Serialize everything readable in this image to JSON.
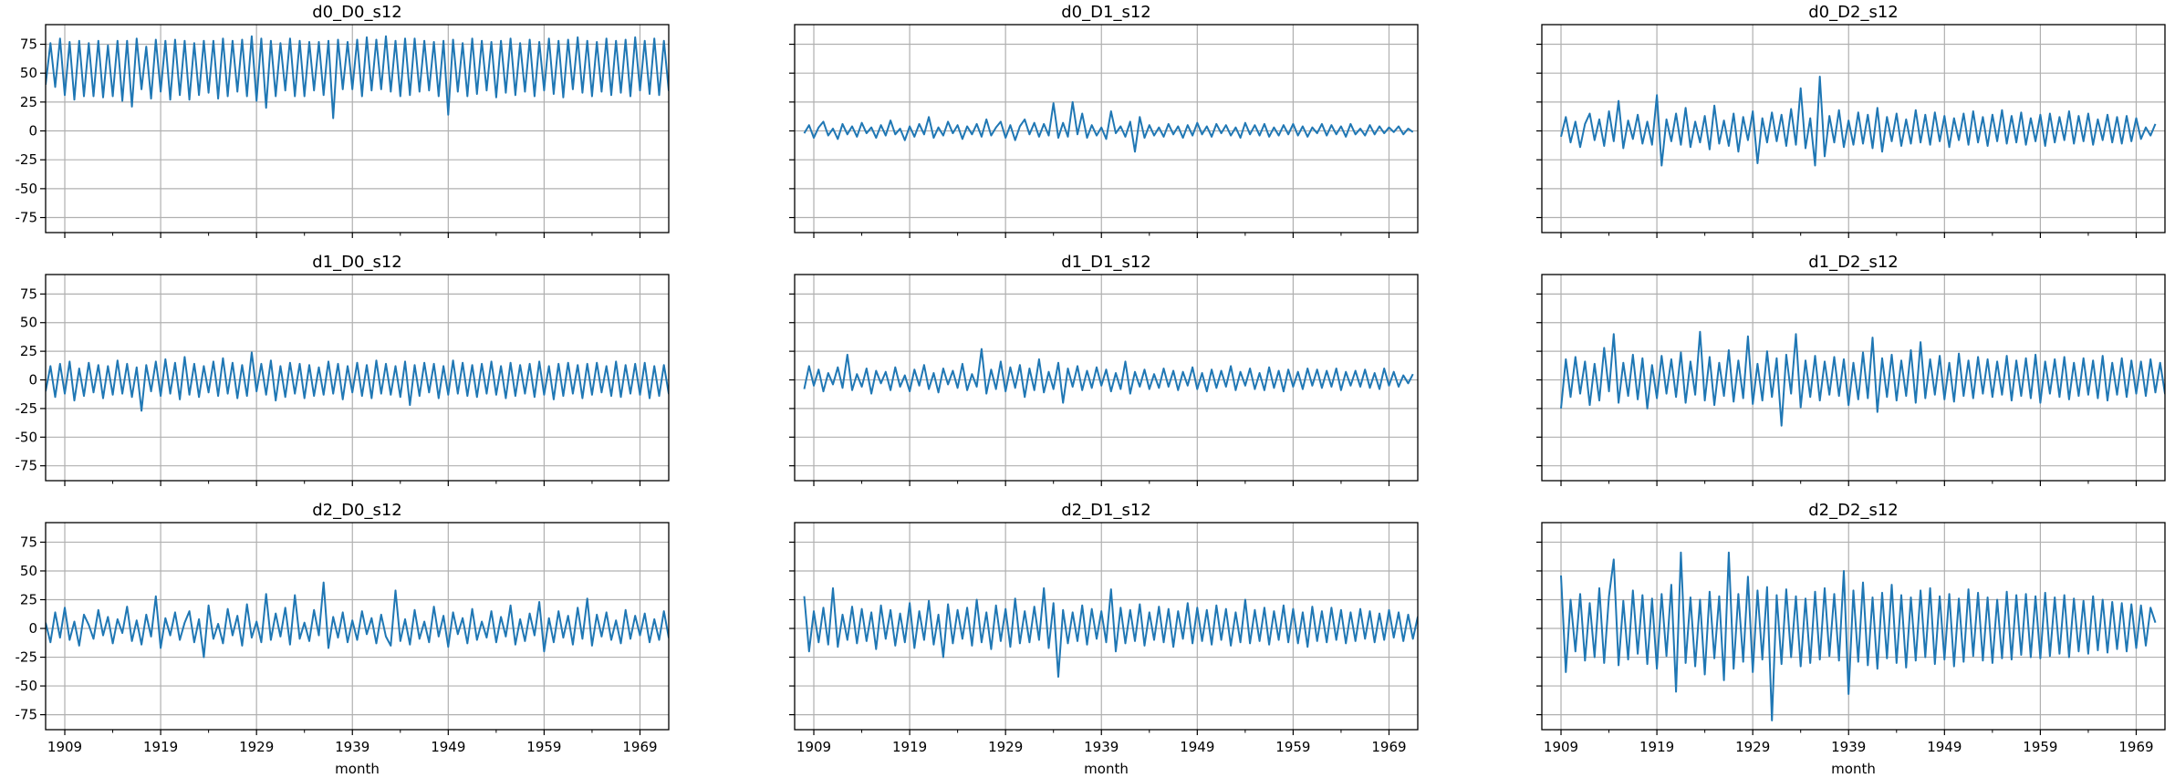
{
  "chart_data": [
    {
      "type": "line",
      "title": "d0_D0_s12",
      "xlabel": "",
      "x_start": 1907,
      "x_step_years": 0.5,
      "values": [
        40,
        76,
        38,
        80,
        31,
        77,
        27,
        78,
        30,
        76,
        30,
        78,
        29,
        74,
        30,
        78,
        26,
        78,
        21,
        80,
        36,
        73,
        28,
        79,
        34,
        78,
        27,
        79,
        31,
        78,
        27,
        76,
        31,
        78,
        33,
        78,
        28,
        80,
        30,
        78,
        34,
        79,
        30,
        82,
        26,
        80,
        20,
        78,
        30,
        76,
        35,
        80,
        30,
        78,
        30,
        77,
        35,
        77,
        31,
        78,
        11,
        79,
        36,
        77,
        36,
        79,
        30,
        81,
        35,
        79,
        36,
        82,
        34,
        78,
        30,
        80,
        31,
        80,
        34,
        78,
        35,
        77,
        30,
        78,
        14,
        79,
        34,
        76,
        30,
        80,
        32,
        78,
        35,
        77,
        29,
        78,
        33,
        80,
        31,
        76,
        34,
        79,
        30,
        77,
        35,
        80,
        32,
        78,
        29,
        79,
        36,
        81,
        33,
        78,
        30,
        77,
        34,
        80,
        31,
        78,
        33,
        79,
        30,
        81,
        35,
        78,
        32,
        80,
        31,
        78,
        35,
        80
      ]
    },
    {
      "type": "line",
      "title": "d0_D1_s12",
      "xlabel": "",
      "x_start": 1908,
      "x_step_years": 0.5,
      "values": [
        -2,
        5,
        -6,
        3,
        8,
        -4,
        2,
        -7,
        6,
        -3,
        4,
        -5,
        7,
        -2,
        3,
        -6,
        5,
        -4,
        9,
        -3,
        2,
        -8,
        4,
        -5,
        6,
        -3,
        12,
        -6,
        3,
        -4,
        8,
        -2,
        5,
        -7,
        4,
        -3,
        6,
        -5,
        10,
        -4,
        3,
        8,
        -6,
        5,
        -8,
        4,
        10,
        -3,
        7,
        -5,
        6,
        -4,
        24,
        -6,
        7,
        -5,
        25,
        -3,
        15,
        -6,
        5,
        -4,
        3,
        -7,
        17,
        -2,
        4,
        -5,
        8,
        -18,
        12,
        -6,
        5,
        -4,
        3,
        -5,
        6,
        -3,
        4,
        -6,
        5,
        -4,
        7,
        -3,
        4,
        -5,
        6,
        -2,
        5,
        -4,
        3,
        -6,
        7,
        -3,
        5,
        -4,
        6,
        -5,
        3,
        -4,
        5,
        -3,
        6,
        -4,
        4,
        -5,
        3,
        -2,
        6,
        -4,
        5,
        -3,
        4,
        -5,
        6,
        -3,
        2,
        -4,
        5,
        -3,
        4,
        -2,
        3,
        -1,
        4,
        -3,
        2,
        -1
      ]
    },
    {
      "type": "line",
      "title": "d0_D2_s12",
      "xlabel": "",
      "x_start": 1909,
      "x_step_years": 0.5,
      "values": [
        -5,
        12,
        -10,
        8,
        -14,
        6,
        15,
        -8,
        10,
        -13,
        17,
        -9,
        26,
        -15,
        9,
        -7,
        14,
        -11,
        8,
        -12,
        31,
        -30,
        10,
        -9,
        15,
        -12,
        20,
        -14,
        8,
        -10,
        13,
        -16,
        22,
        -11,
        9,
        -13,
        15,
        -18,
        12,
        -8,
        17,
        -28,
        11,
        -10,
        16,
        -9,
        14,
        -13,
        19,
        -12,
        37,
        -15,
        11,
        -30,
        47,
        -22,
        13,
        -10,
        18,
        -14,
        9,
        -12,
        16,
        -11,
        14,
        -15,
        20,
        -18,
        12,
        -9,
        15,
        -13,
        10,
        -11,
        18,
        -10,
        14,
        -12,
        16,
        -9,
        13,
        -14,
        11,
        -8,
        15,
        -12,
        17,
        -10,
        12,
        -13,
        14,
        -9,
        18,
        -11,
        13,
        -10,
        16,
        -12,
        11,
        -9,
        14,
        -13,
        15,
        -10,
        12,
        -8,
        17,
        -11,
        13,
        -9,
        15,
        -12,
        10,
        -8,
        14,
        -10,
        12,
        -11,
        13,
        -9,
        11,
        -7,
        3,
        -4,
        6
      ]
    },
    {
      "type": "line",
      "title": "d1_D0_s12",
      "xlabel": "",
      "x_start": 1907,
      "x_step_years": 0.5,
      "values": [
        -10,
        12,
        -15,
        14,
        -12,
        16,
        -18,
        10,
        -14,
        15,
        -11,
        13,
        -16,
        12,
        -13,
        17,
        -12,
        14,
        -15,
        11,
        -27,
        13,
        -10,
        16,
        -14,
        18,
        -12,
        15,
        -17,
        20,
        -13,
        14,
        -15,
        12,
        -11,
        16,
        -14,
        19,
        -12,
        15,
        -16,
        13,
        -14,
        24,
        -10,
        14,
        -13,
        17,
        -18,
        12,
        -15,
        15,
        -12,
        14,
        -16,
        13,
        -14,
        11,
        -13,
        16,
        -12,
        14,
        -17,
        12,
        -11,
        15,
        -14,
        13,
        -16,
        17,
        -12,
        14,
        -13,
        12,
        -15,
        16,
        -22,
        13,
        -14,
        15,
        -11,
        14,
        -16,
        12,
        -13,
        17,
        -12,
        15,
        -14,
        13,
        -15,
        14,
        -12,
        16,
        -13,
        12,
        -16,
        15,
        -14,
        13,
        -12,
        14,
        -15,
        16,
        -13,
        12,
        -17,
        14,
        -14,
        15,
        -12,
        13,
        -16,
        14,
        -13,
        15,
        -11,
        12,
        -14,
        16,
        -15,
        13,
        -12,
        14,
        -13,
        15,
        -16,
        12,
        -14,
        13,
        -12,
        14,
        -11,
        -10
      ]
    },
    {
      "type": "line",
      "title": "d1_D1_s12",
      "xlabel": "",
      "x_start": 1908,
      "x_step_years": 0.5,
      "values": [
        -8,
        12,
        -5,
        9,
        -10,
        6,
        -4,
        11,
        -7,
        22,
        -9,
        5,
        -6,
        10,
        -12,
        8,
        -3,
        7,
        -9,
        11,
        -6,
        4,
        -10,
        9,
        -5,
        13,
        -8,
        6,
        -11,
        10,
        -4,
        8,
        -7,
        14,
        -9,
        5,
        -6,
        27,
        -12,
        9,
        -8,
        16,
        -10,
        11,
        -7,
        13,
        -15,
        10,
        -9,
        18,
        -11,
        7,
        -8,
        15,
        -20,
        10,
        -6,
        12,
        -9,
        8,
        -7,
        11,
        -5,
        9,
        -10,
        6,
        -8,
        16,
        -12,
        7,
        -6,
        9,
        -8,
        5,
        -7,
        10,
        -6,
        8,
        -9,
        7,
        -5,
        11,
        -8,
        6,
        -10,
        9,
        -7,
        8,
        -6,
        12,
        -9,
        7,
        -5,
        10,
        -8,
        6,
        -9,
        11,
        -7,
        8,
        -10,
        9,
        -6,
        7,
        -8,
        10,
        -5,
        9,
        -7,
        8,
        -6,
        10,
        -9,
        7,
        -5,
        8,
        -6,
        9,
        -7,
        6,
        -8,
        10,
        -5,
        7,
        -6,
        4,
        -3,
        5
      ]
    },
    {
      "type": "line",
      "title": "d1_D2_s12",
      "xlabel": "",
      "x_start": 1909,
      "x_step_years": 0.5,
      "values": [
        -25,
        18,
        -15,
        20,
        -12,
        16,
        -22,
        14,
        -18,
        28,
        -10,
        40,
        -20,
        15,
        -14,
        22,
        -17,
        19,
        -25,
        13,
        -16,
        21,
        -12,
        18,
        -15,
        24,
        -20,
        16,
        -13,
        42,
        -18,
        20,
        -22,
        15,
        -14,
        26,
        -19,
        17,
        -16,
        38,
        -21,
        14,
        -18,
        25,
        -15,
        19,
        -40,
        22,
        -12,
        40,
        -24,
        17,
        -15,
        21,
        -18,
        16,
        -13,
        20,
        -14,
        18,
        -22,
        15,
        -17,
        24,
        -16,
        37,
        -28,
        19,
        -15,
        22,
        -18,
        17,
        -14,
        26,
        -20,
        33,
        -16,
        18,
        -13,
        21,
        -17,
        15,
        -19,
        23,
        -14,
        17,
        -16,
        20,
        -12,
        18,
        -15,
        16,
        -13,
        21,
        -18,
        17,
        -14,
        19,
        -16,
        22,
        -20,
        16,
        -12,
        18,
        -15,
        20,
        -17,
        15,
        -14,
        19,
        -13,
        17,
        -16,
        21,
        -18,
        15,
        -13,
        19,
        -15,
        17,
        -12,
        16,
        -14,
        18,
        -11,
        15,
        -12,
        14,
        -10,
        5
      ]
    },
    {
      "type": "line",
      "title": "d2_D0_s12",
      "xlabel": "month",
      "x_start": 1907,
      "x_step_years": 0.5,
      "values": [
        5,
        -12,
        14,
        -8,
        18,
        -10,
        6,
        -15,
        12,
        3,
        -9,
        16,
        -6,
        10,
        -13,
        8,
        -4,
        19,
        -11,
        7,
        -14,
        12,
        -7,
        28,
        -17,
        9,
        -6,
        14,
        -10,
        5,
        15,
        -12,
        8,
        -25,
        20,
        -9,
        4,
        -13,
        17,
        -6,
        11,
        -15,
        21,
        -8,
        6,
        -12,
        30,
        -10,
        13,
        -7,
        18,
        -14,
        29,
        -9,
        5,
        -11,
        16,
        -6,
        40,
        -17,
        10,
        -8,
        14,
        -12,
        7,
        -10,
        15,
        -5,
        9,
        -13,
        12,
        -7,
        -15,
        33,
        -11,
        8,
        -14,
        16,
        -9,
        6,
        -12,
        19,
        -7,
        11,
        -16,
        14,
        -5,
        9,
        -13,
        17,
        -10,
        6,
        -8,
        15,
        -12,
        10,
        -7,
        20,
        -14,
        8,
        -11,
        13,
        -6,
        23,
        -20,
        9,
        -12,
        15,
        -8,
        11,
        -14,
        18,
        -9,
        26,
        -15,
        12,
        -7,
        14,
        -10,
        7,
        -13,
        16,
        -9,
        11,
        -6,
        13,
        -12,
        8,
        -10,
        15,
        -8,
        3
      ]
    },
    {
      "type": "line",
      "title": "d2_D1_s12",
      "xlabel": "month",
      "x_start": 1908,
      "x_step_years": 0.5,
      "values": [
        28,
        -20,
        15,
        -12,
        18,
        -14,
        35,
        -16,
        12,
        -10,
        19,
        -13,
        17,
        -11,
        14,
        -18,
        20,
        -9,
        16,
        -15,
        13,
        -12,
        22,
        -17,
        15,
        -10,
        24,
        -14,
        12,
        -25,
        21,
        -13,
        16,
        -9,
        18,
        -15,
        25,
        -12,
        14,
        -18,
        20,
        -11,
        17,
        -16,
        26,
        -13,
        15,
        -12,
        19,
        -10,
        35,
        -17,
        22,
        -42,
        16,
        -13,
        14,
        -11,
        20,
        -14,
        17,
        -9,
        15,
        -12,
        34,
        -20,
        18,
        -13,
        16,
        -11,
        21,
        -15,
        14,
        -10,
        19,
        -12,
        17,
        -16,
        15,
        -9,
        22,
        -13,
        18,
        -11,
        16,
        -14,
        20,
        -10,
        17,
        -15,
        14,
        -12,
        25,
        -13,
        16,
        -11,
        18,
        -14,
        15,
        -10,
        20,
        -12,
        17,
        -13,
        14,
        -16,
        19,
        -11,
        15,
        -12,
        18,
        -10,
        16,
        -13,
        14,
        -11,
        17,
        -9,
        15,
        -12,
        13,
        -10,
        16,
        -8,
        14,
        -11,
        12,
        -9,
        10,
        -5
      ]
    },
    {
      "type": "line",
      "title": "d2_D2_s12",
      "xlabel": "month",
      "x_start": 1909,
      "x_step_years": 0.5,
      "values": [
        46,
        -38,
        25,
        -20,
        30,
        -28,
        22,
        -25,
        35,
        -30,
        28,
        60,
        -32,
        24,
        -27,
        33,
        -22,
        29,
        -31,
        26,
        -35,
        30,
        -24,
        38,
        -55,
        66,
        -30,
        27,
        -33,
        25,
        -40,
        32,
        -26,
        28,
        -45,
        66,
        -35,
        30,
        -29,
        45,
        -38,
        33,
        -27,
        36,
        -80,
        29,
        -31,
        34,
        -25,
        28,
        -33,
        26,
        -30,
        32,
        -27,
        35,
        -24,
        30,
        -28,
        50,
        -57,
        33,
        -29,
        40,
        -32,
        27,
        -35,
        31,
        -26,
        38,
        -30,
        29,
        -34,
        27,
        -28,
        33,
        -25,
        35,
        -31,
        28,
        -27,
        30,
        -33,
        26,
        -29,
        34,
        -24,
        31,
        -28,
        27,
        -30,
        25,
        -26,
        32,
        -27,
        29,
        -23,
        30,
        -25,
        28,
        -26,
        31,
        -24,
        27,
        -22,
        29,
        -25,
        26,
        -20,
        24,
        -22,
        28,
        -19,
        25,
        -21,
        23,
        -18,
        22,
        -20,
        21,
        -17,
        20,
        -15,
        18,
        5
      ]
    }
  ],
  "axes": {
    "x_ticks": [
      "1909",
      "1919",
      "1929",
      "1939",
      "1949",
      "1959",
      "1969"
    ],
    "x_minor_ticks": [
      1914,
      1924,
      1934,
      1944,
      1954,
      1964
    ],
    "y_ticks": [
      "-75",
      "-50",
      "-25",
      "0",
      "25",
      "50",
      "75"
    ],
    "xlim": [
      1907,
      1972
    ],
    "ylim": [
      -88,
      92
    ],
    "grid": true,
    "sharex": true,
    "sharey": true,
    "line_color": "#1f77b4",
    "grid_color": "#b0b0b0"
  }
}
